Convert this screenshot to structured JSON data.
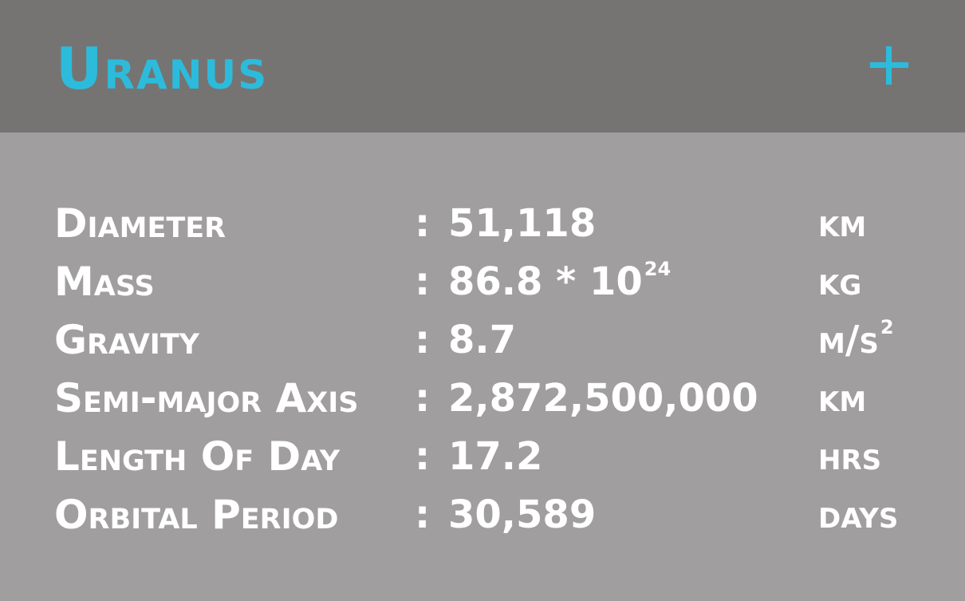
{
  "header": {
    "title": "Uranus",
    "expand_symbol": "+",
    "accent_color": "#2dbbdc",
    "background_color": "#757472"
  },
  "body": {
    "background_color": "#a09e9f",
    "text_color": "#ffffff"
  },
  "stats": [
    {
      "label": "Diameter",
      "separator": ":",
      "value": "51,118",
      "value_sup": "",
      "unit": "km",
      "unit_sup": ""
    },
    {
      "label": "Mass",
      "separator": ":",
      "value": "86.8 * 10",
      "value_sup": "24",
      "unit": "kg",
      "unit_sup": ""
    },
    {
      "label": "Gravity",
      "separator": ":",
      "value": "8.7",
      "value_sup": "",
      "unit": "m/s",
      "unit_sup": "2"
    },
    {
      "label": "Semi-major Axis",
      "separator": ":",
      "value": "2,872,500,000",
      "value_sup": "",
      "unit": "km",
      "unit_sup": ""
    },
    {
      "label": "Length Of Day",
      "separator": ":",
      "value": "17.2",
      "value_sup": "",
      "unit": "hrs",
      "unit_sup": ""
    },
    {
      "label": "Orbital Period",
      "separator": ":",
      "value": "30,589",
      "value_sup": "",
      "unit": "days",
      "unit_sup": ""
    }
  ]
}
